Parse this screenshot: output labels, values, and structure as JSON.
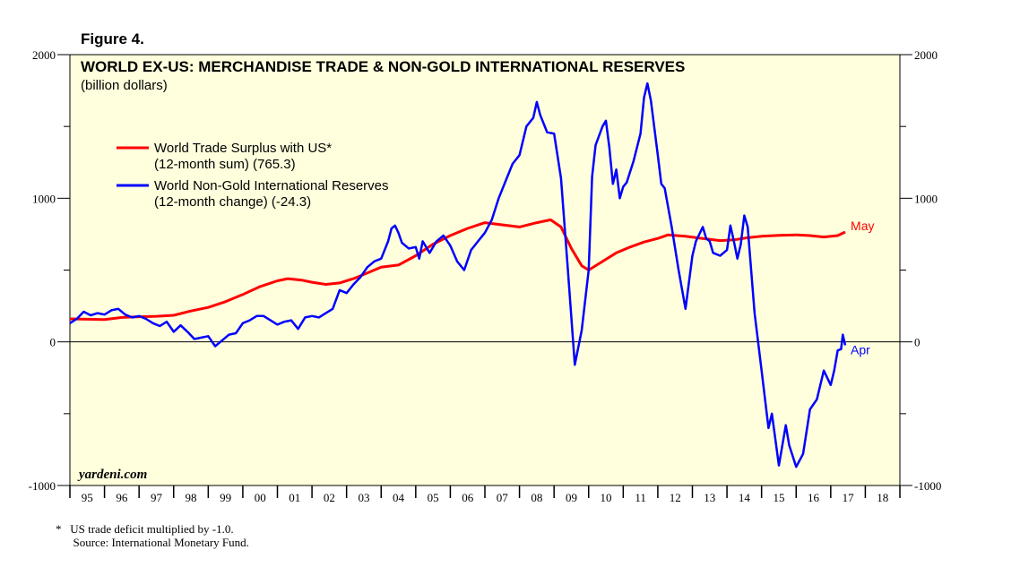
{
  "figure_label": "Figure 4.",
  "footnotes": {
    "note": "*   US trade deficit multiplied by -1.0.",
    "source": "      Source: International Monetary Fund."
  },
  "colors": {
    "background": "#FFFFDD",
    "trade_surplus": "#FF0000",
    "reserves": "#0000FF"
  },
  "chart_data": {
    "type": "line",
    "title": "WORLD EX-US: MERCHANDISE TRADE & NON-GOLD INTERNATIONAL RESERVES",
    "subtitle": "(billion dollars)",
    "watermark": "yardeni.com",
    "ylim": [
      -1000,
      2000
    ],
    "yticks": [
      -1000,
      0,
      1000,
      2000
    ],
    "ytick_labels": [
      "-1000",
      "0",
      "1000",
      "2000"
    ],
    "xlim": [
      1995,
      2019
    ],
    "x_categories": [
      "95",
      "96",
      "97",
      "98",
      "99",
      "00",
      "01",
      "02",
      "03",
      "04",
      "05",
      "06",
      "07",
      "08",
      "09",
      "10",
      "11",
      "12",
      "13",
      "14",
      "15",
      "16",
      "17",
      "18"
    ],
    "legend": [
      {
        "line1": "World Trade Surplus with US*",
        "line2": "(12-month sum) (765.3)",
        "series": 0
      },
      {
        "line1": "World Non-Gold International Reserves",
        "line2": "(12-month change) (-24.3)",
        "series": 1
      }
    ],
    "series": [
      {
        "name": "World Trade Surplus with US",
        "end_label": "May",
        "points": [
          [
            1995.0,
            160
          ],
          [
            1996.0,
            155
          ],
          [
            1996.5,
            170
          ],
          [
            1997.0,
            175
          ],
          [
            1997.5,
            178
          ],
          [
            1998.0,
            185
          ],
          [
            1998.5,
            215
          ],
          [
            1999.0,
            240
          ],
          [
            1999.5,
            280
          ],
          [
            2000.0,
            330
          ],
          [
            2000.5,
            385
          ],
          [
            2001.0,
            425
          ],
          [
            2001.3,
            440
          ],
          [
            2001.7,
            430
          ],
          [
            2002.0,
            415
          ],
          [
            2002.4,
            400
          ],
          [
            2002.8,
            410
          ],
          [
            2003.2,
            440
          ],
          [
            2003.6,
            480
          ],
          [
            2004.0,
            520
          ],
          [
            2004.5,
            535
          ],
          [
            2005.0,
            600
          ],
          [
            2005.5,
            680
          ],
          [
            2006.0,
            740
          ],
          [
            2006.5,
            790
          ],
          [
            2007.0,
            830
          ],
          [
            2007.5,
            815
          ],
          [
            2008.0,
            800
          ],
          [
            2008.5,
            830
          ],
          [
            2008.9,
            850
          ],
          [
            2009.2,
            800
          ],
          [
            2009.5,
            650
          ],
          [
            2009.8,
            530
          ],
          [
            2010.0,
            500
          ],
          [
            2010.4,
            560
          ],
          [
            2010.8,
            620
          ],
          [
            2011.2,
            660
          ],
          [
            2011.6,
            695
          ],
          [
            2012.0,
            720
          ],
          [
            2012.3,
            745
          ],
          [
            2012.8,
            735
          ],
          [
            2013.3,
            720
          ],
          [
            2013.8,
            705
          ],
          [
            2014.2,
            710
          ],
          [
            2014.6,
            725
          ],
          [
            2015.0,
            735
          ],
          [
            2015.5,
            742
          ],
          [
            2016.0,
            745
          ],
          [
            2016.4,
            740
          ],
          [
            2016.8,
            730
          ],
          [
            2017.2,
            740
          ],
          [
            2017.42,
            765
          ]
        ]
      },
      {
        "name": "World Non-Gold International Reserves",
        "end_label": "Apr",
        "points": [
          [
            1995.0,
            130
          ],
          [
            1995.2,
            160
          ],
          [
            1995.4,
            210
          ],
          [
            1995.6,
            185
          ],
          [
            1995.8,
            200
          ],
          [
            1996.0,
            190
          ],
          [
            1996.2,
            220
          ],
          [
            1996.4,
            230
          ],
          [
            1996.6,
            190
          ],
          [
            1996.8,
            170
          ],
          [
            1997.0,
            180
          ],
          [
            1997.2,
            160
          ],
          [
            1997.4,
            130
          ],
          [
            1997.6,
            110
          ],
          [
            1997.8,
            140
          ],
          [
            1998.0,
            70
          ],
          [
            1998.2,
            115
          ],
          [
            1998.4,
            70
          ],
          [
            1998.6,
            20
          ],
          [
            1998.8,
            30
          ],
          [
            1999.0,
            40
          ],
          [
            1999.2,
            -30
          ],
          [
            1999.4,
            10
          ],
          [
            1999.6,
            50
          ],
          [
            1999.8,
            60
          ],
          [
            2000.0,
            130
          ],
          [
            2000.2,
            150
          ],
          [
            2000.4,
            180
          ],
          [
            2000.6,
            180
          ],
          [
            2000.8,
            150
          ],
          [
            2001.0,
            120
          ],
          [
            2001.2,
            140
          ],
          [
            2001.4,
            150
          ],
          [
            2001.5,
            120
          ],
          [
            2001.6,
            90
          ],
          [
            2001.8,
            170
          ],
          [
            2002.0,
            180
          ],
          [
            2002.2,
            170
          ],
          [
            2002.4,
            200
          ],
          [
            2002.6,
            230
          ],
          [
            2002.8,
            360
          ],
          [
            2003.0,
            340
          ],
          [
            2003.2,
            400
          ],
          [
            2003.4,
            450
          ],
          [
            2003.6,
            520
          ],
          [
            2003.8,
            560
          ],
          [
            2004.0,
            580
          ],
          [
            2004.2,
            700
          ],
          [
            2004.3,
            790
          ],
          [
            2004.4,
            810
          ],
          [
            2004.5,
            760
          ],
          [
            2004.6,
            690
          ],
          [
            2004.8,
            650
          ],
          [
            2005.0,
            660
          ],
          [
            2005.1,
            580
          ],
          [
            2005.2,
            700
          ],
          [
            2005.4,
            620
          ],
          [
            2005.6,
            700
          ],
          [
            2005.8,
            740
          ],
          [
            2006.0,
            670
          ],
          [
            2006.2,
            560
          ],
          [
            2006.4,
            500
          ],
          [
            2006.6,
            640
          ],
          [
            2006.8,
            700
          ],
          [
            2007.0,
            760
          ],
          [
            2007.2,
            850
          ],
          [
            2007.4,
            1000
          ],
          [
            2007.6,
            1120
          ],
          [
            2007.8,
            1240
          ],
          [
            2008.0,
            1300
          ],
          [
            2008.2,
            1500
          ],
          [
            2008.4,
            1560
          ],
          [
            2008.5,
            1670
          ],
          [
            2008.6,
            1580
          ],
          [
            2008.8,
            1460
          ],
          [
            2009.0,
            1450
          ],
          [
            2009.2,
            1140
          ],
          [
            2009.4,
            500
          ],
          [
            2009.6,
            -160
          ],
          [
            2009.8,
            80
          ],
          [
            2010.0,
            500
          ],
          [
            2010.1,
            1150
          ],
          [
            2010.2,
            1370
          ],
          [
            2010.4,
            1500
          ],
          [
            2010.5,
            1540
          ],
          [
            2010.6,
            1350
          ],
          [
            2010.7,
            1100
          ],
          [
            2010.8,
            1200
          ],
          [
            2010.9,
            1000
          ],
          [
            2011.0,
            1080
          ],
          [
            2011.1,
            1110
          ],
          [
            2011.3,
            1260
          ],
          [
            2011.5,
            1450
          ],
          [
            2011.6,
            1700
          ],
          [
            2011.7,
            1800
          ],
          [
            2011.8,
            1680
          ],
          [
            2012.0,
            1300
          ],
          [
            2012.1,
            1100
          ],
          [
            2012.2,
            1070
          ],
          [
            2012.4,
            800
          ],
          [
            2012.6,
            500
          ],
          [
            2012.8,
            230
          ],
          [
            2013.0,
            600
          ],
          [
            2013.1,
            700
          ],
          [
            2013.3,
            800
          ],
          [
            2013.4,
            720
          ],
          [
            2013.5,
            700
          ],
          [
            2013.6,
            620
          ],
          [
            2013.8,
            600
          ],
          [
            2014.0,
            640
          ],
          [
            2014.1,
            810
          ],
          [
            2014.2,
            700
          ],
          [
            2014.3,
            580
          ],
          [
            2014.4,
            680
          ],
          [
            2014.5,
            880
          ],
          [
            2014.6,
            800
          ],
          [
            2014.8,
            200
          ],
          [
            2015.0,
            -200
          ],
          [
            2015.2,
            -600
          ],
          [
            2015.3,
            -500
          ],
          [
            2015.5,
            -860
          ],
          [
            2015.7,
            -580
          ],
          [
            2015.8,
            -720
          ],
          [
            2016.0,
            -870
          ],
          [
            2016.2,
            -780
          ],
          [
            2016.4,
            -470
          ],
          [
            2016.6,
            -400
          ],
          [
            2016.8,
            -200
          ],
          [
            2017.0,
            -300
          ],
          [
            2017.1,
            -200
          ],
          [
            2017.2,
            -60
          ],
          [
            2017.3,
            -50
          ],
          [
            2017.35,
            50
          ],
          [
            2017.42,
            -24
          ]
        ]
      }
    ]
  }
}
